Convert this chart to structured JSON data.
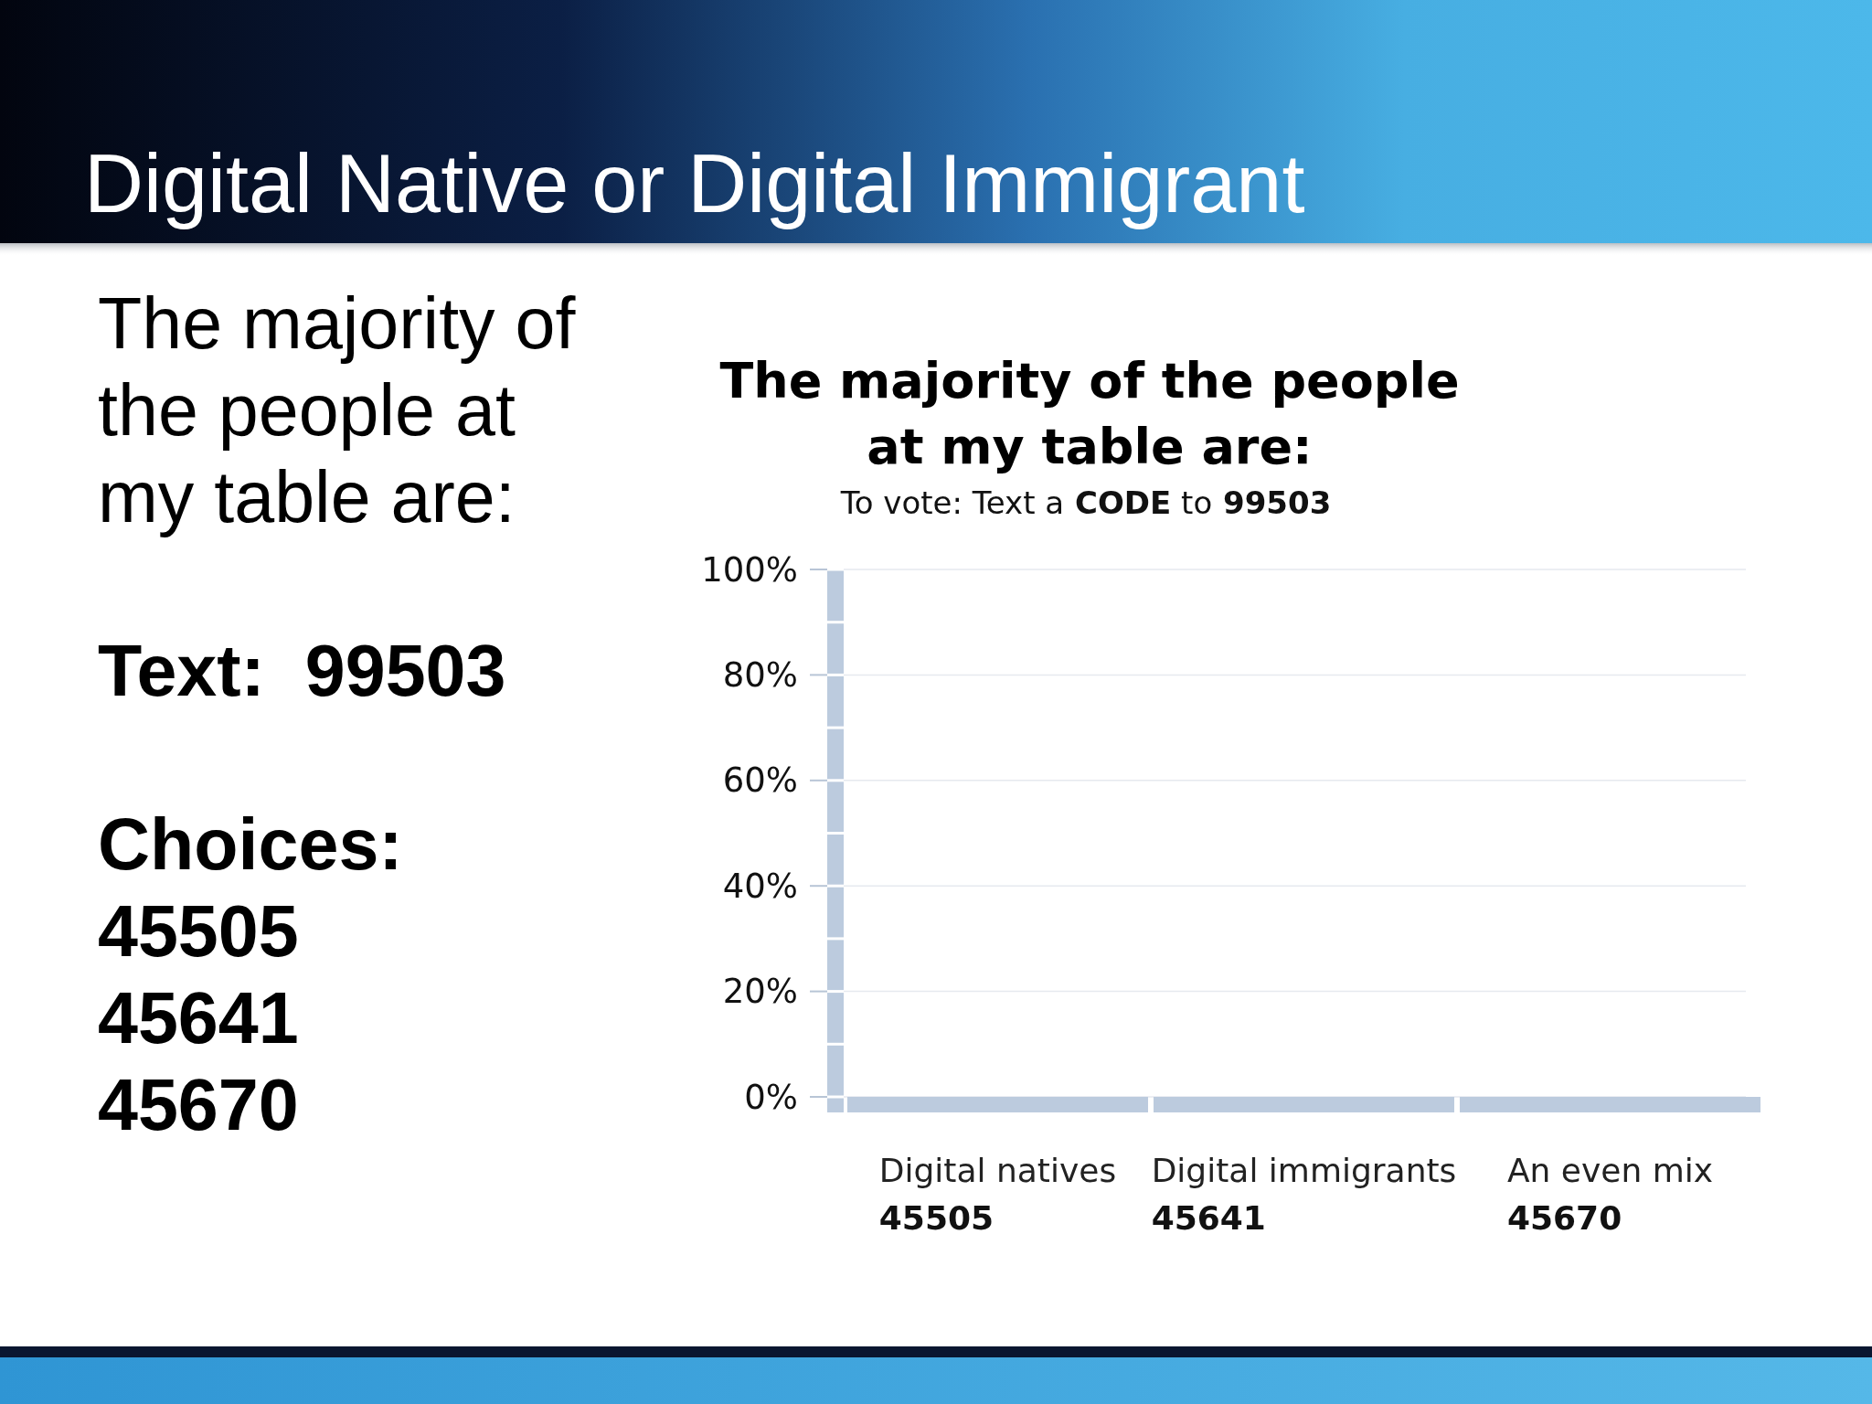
{
  "chart_data": [
    {
      "type": "other",
      "title": "Digital Native or Digital Immigrant",
      "annotations": [
        "The majority of the people at my table are:",
        "Text:  99503",
        "Choices:",
        "45505",
        "45641",
        "45670"
      ]
    },
    {
      "type": "bar",
      "title": "The majority of the people at my table are:",
      "subtitle": "To vote: Text a CODE to 99503",
      "categories": [
        "Digital natives",
        "Digital immigrants",
        "An even mix"
      ],
      "values": [
        0,
        0,
        0
      ],
      "color": "#bccbde",
      "ylim": [
        0,
        100
      ],
      "yticks": [
        {
          "value": 0,
          "label": "0%"
        },
        {
          "value": 20,
          "label": "20%"
        },
        {
          "value": 40,
          "label": "40%"
        },
        {
          "value": 60,
          "label": "60%"
        },
        {
          "value": 80,
          "label": "80%"
        },
        {
          "value": 100,
          "label": "100%"
        }
      ],
      "grid": "y",
      "annotations": [
        "45505",
        "45641",
        "45670"
      ]
    }
  ]
}
